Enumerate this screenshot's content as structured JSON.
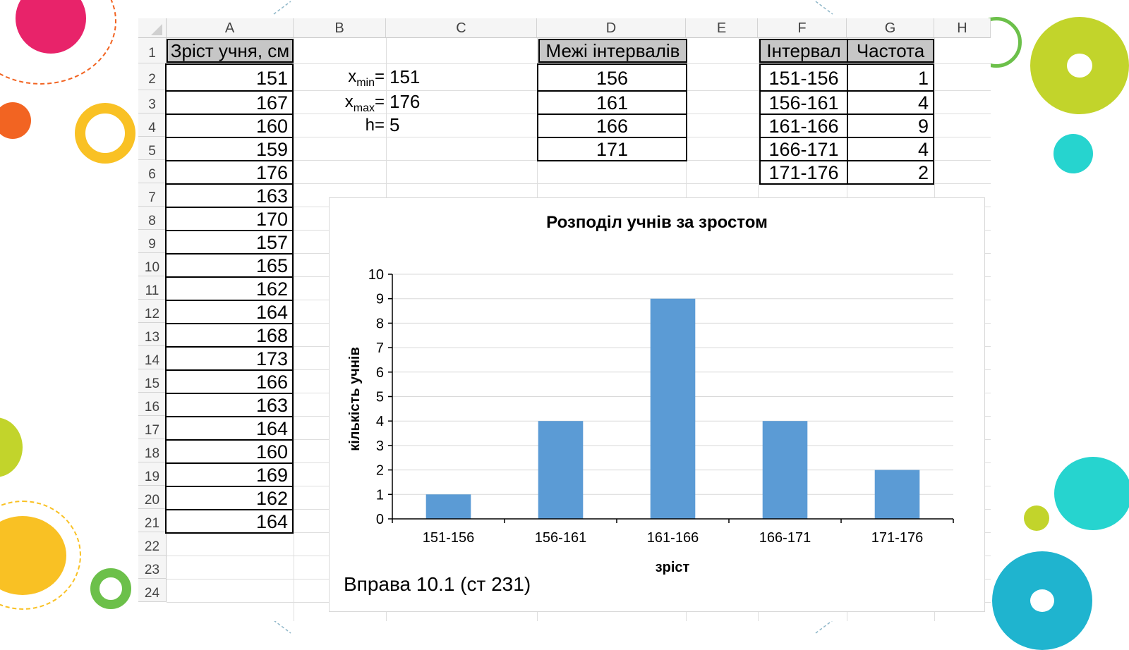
{
  "sheet": {
    "columns": [
      "A",
      "B",
      "C",
      "D",
      "E",
      "F",
      "G",
      "H"
    ],
    "rows": [
      "1",
      "2",
      "3",
      "4",
      "5",
      "6",
      "7",
      "8",
      "9",
      "10",
      "11",
      "12",
      "13",
      "14",
      "15",
      "16",
      "17",
      "18",
      "19",
      "20",
      "21",
      "22",
      "23",
      "24"
    ],
    "col_a": {
      "header": "Зріст учня, см",
      "values": [
        "151",
        "167",
        "160",
        "159",
        "176",
        "163",
        "170",
        "157",
        "165",
        "162",
        "164",
        "168",
        "173",
        "166",
        "163",
        "164",
        "160",
        "169",
        "162",
        "164"
      ]
    },
    "params": [
      {
        "label": "x",
        "sub": "min",
        "eq": "=",
        "value": "151"
      },
      {
        "label": "x",
        "sub": "max",
        "eq": "=",
        "value": "176"
      },
      {
        "label": "h=",
        "sub": "",
        "eq": "",
        "value": "5"
      }
    ],
    "bounds": {
      "header": "Межі інтервалів",
      "values": [
        "156",
        "161",
        "166",
        "171"
      ]
    },
    "freq": {
      "header_interval": "Інтервал",
      "header_freq": "Частота",
      "rows": [
        {
          "interval": "151-156",
          "freq": "1"
        },
        {
          "interval": "156-161",
          "freq": "4"
        },
        {
          "interval": "161-166",
          "freq": "9"
        },
        {
          "interval": "166-171",
          "freq": "4"
        },
        {
          "interval": "171-176",
          "freq": "2"
        }
      ]
    }
  },
  "caption": "Вправа 10.1 (ст 231)",
  "colors": {
    "bar": "#5b9bd5",
    "deco_pink": "#e8236a",
    "deco_orange": "#f26422",
    "deco_yellow": "#f9c124",
    "deco_green": "#c2d42b",
    "deco_teal": "#26d4cf",
    "deco_blue": "#1fb4cf",
    "deco_ring_green": "#6cc04a"
  },
  "chart_data": {
    "type": "bar",
    "title": "Розподіл учнів за зростом",
    "xlabel": "зріст",
    "ylabel": "кількість учнів",
    "categories": [
      "151-156",
      "156-161",
      "161-166",
      "166-171",
      "171-176"
    ],
    "values": [
      1,
      4,
      9,
      4,
      2
    ],
    "ylim": [
      0,
      10
    ],
    "yticks": [
      "0",
      "1",
      "2",
      "3",
      "4",
      "5",
      "6",
      "7",
      "8",
      "9",
      "10"
    ],
    "grid": true,
    "legend": "none"
  }
}
